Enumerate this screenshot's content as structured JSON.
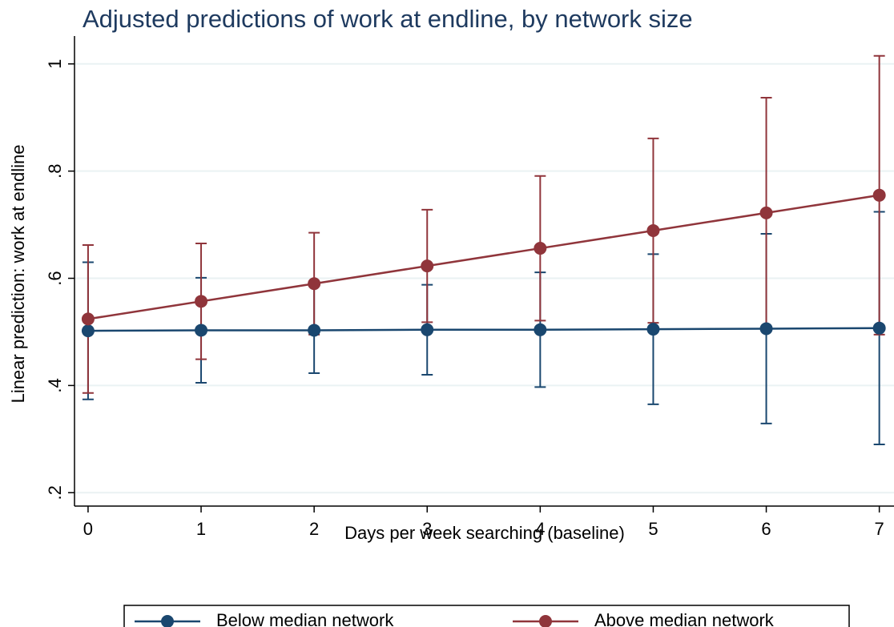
{
  "chart_data": {
    "type": "line",
    "title": "Adjusted predictions of work at endline, by network size",
    "x_label": "Days per week searching (baseline)",
    "y_label": "Linear prediction: work at endline",
    "x": [
      0,
      1,
      2,
      3,
      4,
      5,
      6,
      7
    ],
    "series": [
      {
        "name": "Below median network",
        "color": "#1a476f",
        "values": [
          0.502,
          0.503,
          0.503,
          0.504,
          0.504,
          0.505,
          0.506,
          0.507
        ],
        "ci_low": [
          0.374,
          0.405,
          0.423,
          0.42,
          0.397,
          0.365,
          0.329,
          0.29
        ],
        "ci_high": [
          0.63,
          0.601,
          0.588,
          0.588,
          0.611,
          0.645,
          0.683,
          0.724
        ]
      },
      {
        "name": "Above median network",
        "color": "#90353b",
        "values": [
          0.524,
          0.557,
          0.59,
          0.623,
          0.656,
          0.689,
          0.722,
          0.755
        ],
        "ci_low": [
          0.386,
          0.449,
          0.495,
          0.518,
          0.521,
          0.517,
          0.507,
          0.495
        ],
        "ci_high": [
          0.662,
          0.665,
          0.685,
          0.728,
          0.791,
          0.861,
          0.937,
          1.015
        ]
      }
    ],
    "xlim": [
      -0.12,
      7.13
    ],
    "xticks": [
      0,
      1,
      2,
      3,
      4,
      5,
      6,
      7
    ],
    "ylim": [
      0.175,
      1.052
    ],
    "yticks": [
      {
        "value": 0.2,
        "label": ".2"
      },
      {
        "value": 0.4,
        "label": ".4"
      },
      {
        "value": 0.6,
        "label": ".6"
      },
      {
        "value": 0.8,
        "label": ".8"
      },
      1
    ],
    "grid": true,
    "legend": "bottom"
  }
}
